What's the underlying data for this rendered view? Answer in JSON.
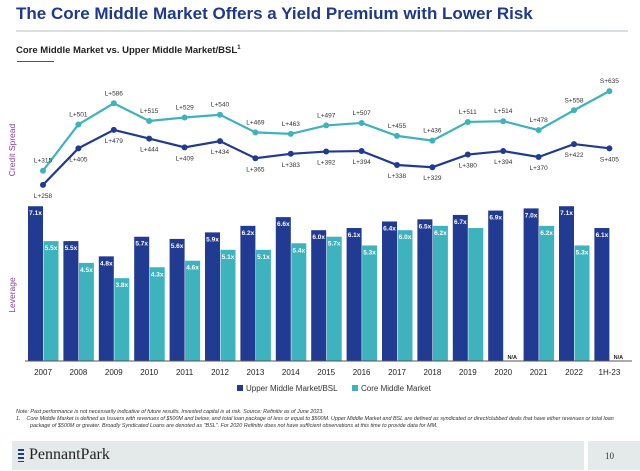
{
  "header": {
    "title": "The Core Middle Market Offers a Yield Premium with Lower Risk"
  },
  "colors": {
    "upper": "#213a92",
    "core": "#3fb3bd",
    "axis_label": "#8a3c9c",
    "title": "#1f3a8c"
  },
  "chart_data": [
    {
      "type": "line",
      "title": "Core Middle Market vs. Upper Middle Market/BSL",
      "title_superscript": "1",
      "ylabel": "Credit Spread",
      "categories": [
        "2007",
        "2008",
        "2009",
        "2010",
        "2011",
        "2012",
        "2013",
        "2014",
        "2015",
        "2016",
        "2017",
        "2018",
        "2019",
        "2020",
        "2021",
        "2022",
        "1H-23"
      ],
      "series": [
        {
          "name": "Core Middle Market",
          "values": [
            315,
            501,
            586,
            515,
            529,
            540,
            469,
            463,
            497,
            507,
            455,
            436,
            511,
            514,
            478,
            558,
            635
          ],
          "labels": [
            "L+315",
            "L+501",
            "L+586",
            "L+515",
            "L+529",
            "L+540",
            "L+469",
            "L+463",
            "L+497",
            "L+507",
            "L+455",
            "L+436",
            "L+511",
            "L+514",
            "L+478",
            "S+558",
            "S+635"
          ]
        },
        {
          "name": "Upper Middle Market/BSL",
          "values": [
            258,
            405,
            479,
            444,
            409,
            434,
            365,
            383,
            392,
            394,
            338,
            329,
            380,
            394,
            370,
            422,
            405
          ],
          "labels": [
            "L+258",
            "L+405",
            "L+479",
            "L+444",
            "L+409",
            "L+434",
            "L+365",
            "L+383",
            "L+392",
            "L+394",
            "L+338",
            "L+329",
            "L+380",
            "L+394",
            "L+370",
            "S+422",
            "S+405"
          ]
        }
      ],
      "grid": false
    },
    {
      "type": "bar",
      "ylabel": "Leverage",
      "categories": [
        "2007",
        "2008",
        "2009",
        "2010",
        "2011",
        "2012",
        "2013",
        "2014",
        "2015",
        "2016",
        "2017",
        "2018",
        "2019",
        "2020",
        "2021",
        "2022",
        "1H-23"
      ],
      "series": [
        {
          "name": "Upper Middle Market/BSL",
          "values": [
            7.1,
            5.5,
            4.8,
            5.7,
            5.6,
            5.9,
            6.2,
            6.6,
            6.0,
            6.1,
            6.4,
            6.5,
            6.7,
            6.9,
            7.0,
            7.1,
            6.1
          ],
          "labels": [
            "7.1x",
            "5.5x",
            "4.8x",
            "5.7x",
            "5.6x",
            "5.9x",
            "6.2x",
            "6.6x",
            "6.0x",
            "6.1x",
            "6.4x",
            "6.5x",
            "6.7x",
            "6.9x",
            "7.0x",
            "7.1x",
            "6.1x"
          ]
        },
        {
          "name": "Core Middle Market",
          "values": [
            5.5,
            4.5,
            3.8,
            4.3,
            4.6,
            5.1,
            5.1,
            5.4,
            5.7,
            5.3,
            6.0,
            6.2,
            6.1,
            null,
            6.2,
            5.3,
            null
          ],
          "labels": [
            "5.5x",
            "4.5x",
            "3.8x",
            "4.3x",
            "4.6x",
            "5.1x",
            "5.1x",
            "5.4x",
            "5.7x",
            "5.3x",
            "6.0x",
            "6.2x",
            "",
            "N/A",
            "6.2x",
            "5.3x",
            "N/A"
          ]
        }
      ],
      "legend": "bottom-center",
      "grid": false
    }
  ],
  "notes": {
    "note": "Note: Past performance is not necessarily indicative of future results. Invested capital is at risk. Source: Refinitiv as of June 2023.",
    "footnote": "1.    Core Middle Market is defined as Issuers with revenues of $500M and below, and total loan package of less or equal to $500M. Upper Middle Market and BSL are defined as syndicated or direct/clubbed deals that have either revenues or total loan package of $500M or greater. Broadly Syndicated Loans are denoted as \"BSL\". For 2020 Refinitiv does not have sufficient observations at this time to provide data for MM."
  },
  "footer": {
    "logo": "PennantPark",
    "page": "10"
  }
}
